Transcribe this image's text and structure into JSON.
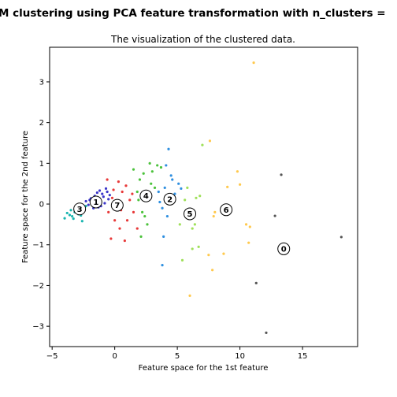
{
  "chart_data": {
    "type": "scatter",
    "suptitle": "M clustering using PCA feature transformation with n_clusters =",
    "title": "The visualization of the clustered data.",
    "xlabel": "Feature space for the 1st feature",
    "ylabel": "Feature space for the 2nd feature",
    "xlim": [
      -5.2,
      19.4
    ],
    "ylim": [
      -3.5,
      3.85
    ],
    "xticks": [
      -5,
      0,
      5,
      10,
      15
    ],
    "yticks": [
      -3,
      -2,
      -1,
      0,
      1,
      2,
      3
    ],
    "grid": false,
    "series": [
      {
        "cluster": "0",
        "color": "#555555",
        "points": [
          [
            13.3,
            0.72
          ],
          [
            12.8,
            -0.29
          ],
          [
            11.3,
            -1.94
          ],
          [
            12.1,
            -3.16
          ],
          [
            18.1,
            -0.81
          ]
        ]
      },
      {
        "cluster": "1",
        "color": "#3b36c9",
        "points": [
          [
            -1.5,
            0.05
          ],
          [
            -1.2,
            0.12
          ],
          [
            -0.9,
            0.18
          ],
          [
            -1.8,
            0.02
          ],
          [
            -2.1,
            -0.02
          ],
          [
            -1.0,
            0.25
          ],
          [
            -0.6,
            0.3
          ],
          [
            -1.3,
            -0.08
          ],
          [
            -0.8,
            0.02
          ],
          [
            -2.3,
            0.07
          ],
          [
            -1.6,
            0.2
          ],
          [
            -0.4,
            0.22
          ],
          [
            -1.1,
            -0.05
          ],
          [
            -1.9,
            0.14
          ],
          [
            -0.7,
            0.38
          ],
          [
            -1.4,
            0.28
          ],
          [
            -2.0,
            0.1
          ],
          [
            -0.5,
            0.12
          ],
          [
            -1.7,
            -0.1
          ],
          [
            -1.2,
            0.33
          ]
        ]
      },
      {
        "cluster": "2",
        "color": "#2f8fe0",
        "points": [
          [
            4.4,
            0.12
          ],
          [
            4.0,
            0.4
          ],
          [
            3.8,
            -0.1
          ],
          [
            4.6,
            0.6
          ],
          [
            4.2,
            -0.3
          ],
          [
            5.1,
            0.5
          ],
          [
            3.5,
            0.3
          ],
          [
            4.8,
            0.25
          ],
          [
            4.3,
            1.35
          ],
          [
            3.9,
            -0.8
          ],
          [
            3.8,
            -1.5
          ],
          [
            5.3,
            0.38
          ],
          [
            4.5,
            0.7
          ],
          [
            3.6,
            0.05
          ],
          [
            4.1,
            0.95
          ]
        ]
      },
      {
        "cluster": "3",
        "color": "#1ab5b0",
        "points": [
          [
            -2.8,
            -0.12
          ],
          [
            -3.2,
            -0.2
          ],
          [
            -3.6,
            -0.27
          ],
          [
            -4.0,
            -0.35
          ],
          [
            -3.0,
            -0.05
          ],
          [
            -2.5,
            -0.15
          ],
          [
            -3.4,
            -0.3
          ],
          [
            -3.8,
            -0.22
          ],
          [
            -2.7,
            -0.28
          ],
          [
            -3.1,
            -0.1
          ],
          [
            -2.3,
            -0.05
          ],
          [
            -3.5,
            -0.15
          ],
          [
            -2.9,
            -0.25
          ],
          [
            -3.3,
            -0.36
          ],
          [
            -2.6,
            -0.42
          ]
        ]
      },
      {
        "cluster": "4",
        "color": "#4cc23c",
        "points": [
          [
            2.5,
            0.18
          ],
          [
            2.0,
            0.6
          ],
          [
            2.8,
            1.0
          ],
          [
            2.2,
            -0.2
          ],
          [
            3.0,
            0.8
          ],
          [
            1.8,
            0.3
          ],
          [
            2.6,
            -0.5
          ],
          [
            3.4,
            0.95
          ],
          [
            2.1,
            -0.8
          ],
          [
            1.5,
            0.85
          ],
          [
            3.2,
            0.4
          ],
          [
            2.4,
            -0.3
          ],
          [
            1.9,
            0.1
          ],
          [
            2.9,
            0.5
          ],
          [
            3.7,
            0.9
          ],
          [
            2.3,
            0.75
          ]
        ]
      },
      {
        "cluster": "5",
        "color": "#9fe05a",
        "points": [
          [
            6.0,
            -0.24
          ],
          [
            5.6,
            0.1
          ],
          [
            6.5,
            0.15
          ],
          [
            6.2,
            -0.6
          ],
          [
            5.4,
            -1.38
          ],
          [
            6.7,
            -1.05
          ],
          [
            6.2,
            -1.1
          ],
          [
            5.8,
            0.4
          ],
          [
            7.0,
            1.45
          ],
          [
            6.4,
            -0.5
          ],
          [
            5.2,
            -0.5
          ],
          [
            6.8,
            0.2
          ]
        ]
      },
      {
        "cluster": "6",
        "color": "#ffc94d",
        "points": [
          [
            8.8,
            -0.14
          ],
          [
            7.6,
            1.55
          ],
          [
            8.0,
            -0.2
          ],
          [
            9.0,
            0.42
          ],
          [
            9.8,
            0.8
          ],
          [
            10.0,
            0.48
          ],
          [
            10.5,
            -0.5
          ],
          [
            10.8,
            -0.56
          ],
          [
            10.7,
            -0.95
          ],
          [
            11.1,
            3.47
          ],
          [
            7.5,
            -1.25
          ],
          [
            7.8,
            -1.62
          ],
          [
            6.0,
            -2.25
          ],
          [
            8.7,
            -1.22
          ],
          [
            7.9,
            -0.3
          ]
        ]
      },
      {
        "cluster": "7",
        "color": "#e83a3a",
        "points": [
          [
            0.2,
            -0.03
          ],
          [
            -0.2,
            0.15
          ],
          [
            0.6,
            0.3
          ],
          [
            -0.5,
            -0.2
          ],
          [
            1.0,
            -0.4
          ],
          [
            0.4,
            -0.6
          ],
          [
            -0.3,
            -0.85
          ],
          [
            1.5,
            -0.2
          ],
          [
            0.9,
            0.45
          ],
          [
            -0.6,
            0.6
          ],
          [
            0.3,
            0.55
          ],
          [
            1.2,
            0.1
          ],
          [
            0.0,
            -0.4
          ],
          [
            1.8,
            -0.6
          ],
          [
            0.8,
            -0.9
          ],
          [
            -0.1,
            0.35
          ],
          [
            0.5,
            -0.15
          ],
          [
            1.4,
            0.25
          ]
        ]
      }
    ],
    "centers": [
      {
        "label": "0",
        "x": 13.5,
        "y": -1.1
      },
      {
        "label": "1",
        "x": -1.5,
        "y": 0.05
      },
      {
        "label": "2",
        "x": 4.4,
        "y": 0.12
      },
      {
        "label": "3",
        "x": -2.8,
        "y": -0.12
      },
      {
        "label": "4",
        "x": 2.5,
        "y": 0.2
      },
      {
        "label": "5",
        "x": 6.0,
        "y": -0.24
      },
      {
        "label": "6",
        "x": 8.9,
        "y": -0.14
      },
      {
        "label": "7",
        "x": 0.2,
        "y": -0.03
      }
    ]
  }
}
